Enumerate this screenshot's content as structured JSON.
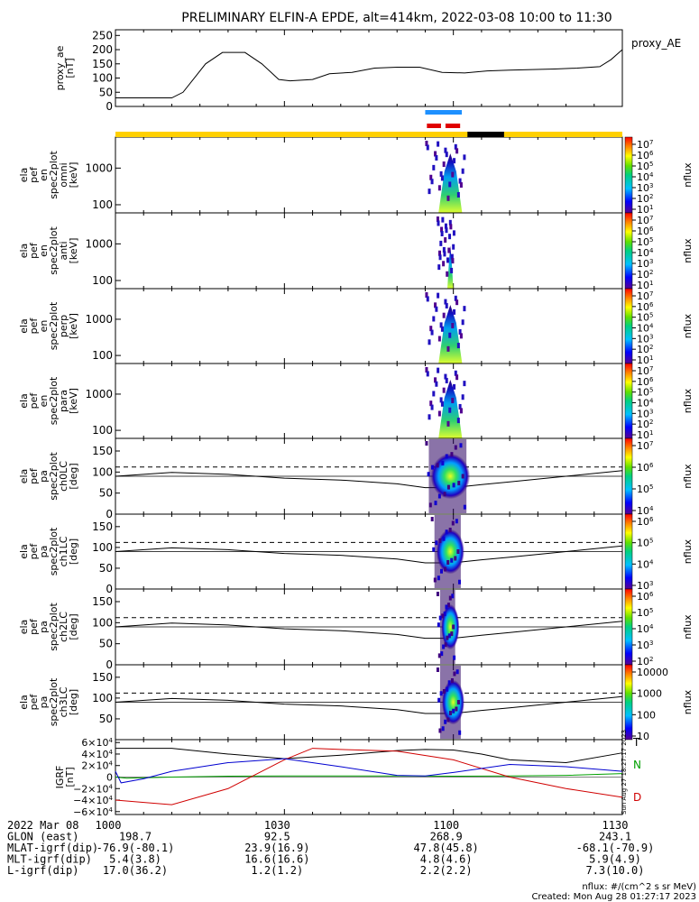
{
  "title": "PRELIMINARY ELFIN-A EPDE, alt=414km, 2022-03-08 10:00 to 11:30",
  "chart_data": [
    {
      "type": "line",
      "id": "proxy_ae",
      "ylabel_lines": [
        "proxy_ae",
        "[nT]"
      ],
      "legend": "proxy_AE",
      "ylim": [
        0,
        270
      ],
      "yticks": [
        "250",
        "200",
        "150",
        "100",
        "50",
        "0"
      ],
      "ytick_values": [
        250,
        200,
        150,
        100,
        50,
        0
      ],
      "x_minutes": [
        0,
        5,
        10,
        12,
        14,
        16,
        19,
        23,
        26,
        29,
        31,
        35,
        38,
        42,
        46,
        50,
        54,
        58,
        62,
        66,
        70,
        74,
        78,
        82,
        86,
        88,
        90
      ],
      "values": [
        30,
        30,
        30,
        50,
        100,
        150,
        190,
        190,
        150,
        95,
        90,
        95,
        115,
        120,
        135,
        138,
        138,
        120,
        118,
        125,
        128,
        130,
        132,
        135,
        140,
        165,
        200
      ]
    },
    {
      "type": "heatmap",
      "id": "omni",
      "ylabel_lines": [
        "ela",
        "pef",
        "en",
        "spec2plot",
        "omni",
        "[keV]"
      ],
      "yscale": "log",
      "yticks": [
        "1000",
        "100"
      ],
      "colorbar_ticks": [
        "10^7",
        "10^6",
        "10^5",
        "10^4",
        "10^3",
        "10^2",
        "10^1"
      ],
      "colorbar_label": "nflux",
      "active_interval_minutes": [
        55,
        62
      ]
    },
    {
      "type": "heatmap",
      "id": "anti",
      "ylabel_lines": [
        "ela",
        "pef",
        "en",
        "spec2plot",
        "anti",
        "[keV]"
      ],
      "yscale": "log",
      "yticks": [
        "1000",
        "100"
      ],
      "colorbar_ticks": [
        "10^7",
        "10^6",
        "10^5",
        "10^4",
        "10^3",
        "10^2",
        "10^1"
      ],
      "colorbar_label": "nflux",
      "active_interval_minutes": [
        57,
        60
      ]
    },
    {
      "type": "heatmap",
      "id": "perp",
      "ylabel_lines": [
        "ela",
        "pef",
        "en",
        "spec2plot",
        "perp",
        "[keV]"
      ],
      "yscale": "log",
      "yticks": [
        "1000",
        "100"
      ],
      "colorbar_ticks": [
        "10^7",
        "10^6",
        "10^5",
        "10^4",
        "10^3",
        "10^2",
        "10^1"
      ],
      "colorbar_label": "nflux",
      "active_interval_minutes": [
        55,
        62
      ]
    },
    {
      "type": "heatmap",
      "id": "para",
      "ylabel_lines": [
        "ela",
        "pef",
        "en",
        "spec2plot",
        "para",
        "[keV]"
      ],
      "yscale": "log",
      "yticks": [
        "1000",
        "100"
      ],
      "colorbar_ticks": [
        "10^7",
        "10^6",
        "10^5",
        "10^4",
        "10^3",
        "10^2",
        "10^1"
      ],
      "colorbar_label": "nflux",
      "active_interval_minutes": [
        55,
        62
      ]
    },
    {
      "type": "heatmap",
      "id": "ch0LC",
      "ylabel_lines": [
        "ela",
        "pef",
        "pa",
        "spec2plot",
        "ch0LC",
        "[deg]"
      ],
      "ylim": [
        0,
        180
      ],
      "yticks": [
        "150",
        "100",
        "50",
        "0"
      ],
      "ytick_values": [
        150,
        100,
        50,
        0
      ],
      "colorbar_ticks": [
        "10^7",
        "10^6",
        "10^5",
        "10^4"
      ],
      "colorbar_label": "nflux",
      "active_interval_minutes": [
        55,
        62
      ],
      "losscone_minutes": [
        0,
        10,
        20,
        30,
        40,
        50,
        55,
        60,
        65,
        70,
        80,
        90
      ],
      "losscone_deg": [
        100,
        110,
        105,
        95,
        90,
        80,
        70,
        70,
        78,
        85,
        100,
        115
      ],
      "antilosscone_deg": [
        80,
        70,
        75,
        85,
        90,
        100,
        110,
        110,
        102,
        95,
        80,
        65
      ]
    },
    {
      "type": "heatmap",
      "id": "ch1LC",
      "ylabel_lines": [
        "ela",
        "pef",
        "pa",
        "spec2plot",
        "ch1LC",
        "[deg]"
      ],
      "ylim": [
        0,
        180
      ],
      "yticks": [
        "150",
        "100",
        "50",
        "0"
      ],
      "ytick_values": [
        150,
        100,
        50,
        0
      ],
      "colorbar_ticks": [
        "10^6",
        "10^5",
        "10^4",
        "10^3"
      ],
      "colorbar_label": "nflux",
      "active_interval_minutes": [
        56,
        61
      ]
    },
    {
      "type": "heatmap",
      "id": "ch2LC",
      "ylabel_lines": [
        "ela",
        "pef",
        "pa",
        "spec2plot",
        "ch2LC",
        "[deg]"
      ],
      "ylim": [
        0,
        180
      ],
      "yticks": [
        "150",
        "100",
        "50",
        "0"
      ],
      "ytick_values": [
        150,
        100,
        50,
        0
      ],
      "colorbar_ticks": [
        "10^6",
        "10^5",
        "10^4",
        "10^3",
        "10^2"
      ],
      "colorbar_label": "nflux",
      "active_interval_minutes": [
        57,
        60
      ]
    },
    {
      "type": "heatmap",
      "id": "ch3LC",
      "ylabel_lines": [
        "ela",
        "pef",
        "pa",
        "spec2plot",
        "ch3LC",
        "[deg]"
      ],
      "ylim": [
        0,
        180
      ],
      "yticks": [
        "150",
        "100",
        "50"
      ],
      "ytick_values": [
        150,
        100,
        50
      ],
      "colorbar_ticks": [
        "10000",
        "1000",
        "100",
        "10"
      ],
      "colorbar_label": "nflux",
      "active_interval_minutes": [
        57,
        61
      ]
    },
    {
      "type": "line",
      "id": "igrf",
      "ylabel_lines": [
        "IGRF",
        "[nT]"
      ],
      "ylim": [
        -65000,
        65000
      ],
      "yticks": [
        "6×10^4",
        "4×10^4",
        "2×10^4",
        "0",
        "−2×10^4",
        "−4×10^4",
        "−6×10^4"
      ],
      "ytick_values": [
        60000,
        40000,
        20000,
        0,
        -20000,
        -40000,
        -60000
      ],
      "series": [
        {
          "name": "T",
          "color": "#000000",
          "x": [
            0,
            10,
            20,
            30,
            40,
            50,
            55,
            60,
            65,
            70,
            80,
            90
          ],
          "values": [
            50000,
            50000,
            40000,
            32000,
            38000,
            46000,
            48000,
            47000,
            40000,
            30000,
            25000,
            42000
          ]
        },
        {
          "name": "N",
          "color": "#00a000",
          "x": [
            0,
            2,
            10,
            20,
            30,
            40,
            50,
            60,
            70,
            80,
            90
          ],
          "values": [
            0,
            -2000,
            0,
            1500,
            2000,
            2000,
            2000,
            1500,
            2000,
            3000,
            6000
          ]
        },
        {
          "name": "D",
          "color": "#d00000",
          "x": [
            0,
            10,
            20,
            30,
            35,
            40,
            50,
            60,
            70,
            80,
            90
          ],
          "values": [
            -40000,
            -48000,
            -20000,
            30000,
            50000,
            48000,
            45000,
            30000,
            0,
            -20000,
            -35000
          ]
        },
        {
          "name": "",
          "color": "#0000d0",
          "x": [
            0,
            1,
            5,
            10,
            20,
            30,
            40,
            50,
            55,
            60,
            70,
            80,
            90
          ],
          "values": [
            10000,
            -10000,
            -3000,
            10000,
            25000,
            32000,
            18000,
            3000,
            2000,
            8000,
            22000,
            18000,
            10000
          ]
        }
      ]
    }
  ],
  "side_stamp": "Sun Aug 27 18:27:17 2023",
  "footer": {
    "rows": [
      [
        "2022 Mar 08",
        "1000",
        "1030",
        "1100",
        "1130"
      ],
      [
        "GLON (east)",
        "198.7",
        "92.5",
        "268.9",
        "243.1"
      ],
      [
        "MLAT-igrf(dip)",
        "-76.9(-80.1)",
        "23.9(16.9)",
        "47.8(45.8)",
        "-68.1(-70.9)"
      ],
      [
        "MLT-igrf(dip)",
        "5.4(3.8)",
        "16.6(16.6)",
        "4.8(4.6)",
        "5.9(4.9)"
      ],
      [
        "L-igrf(dip)",
        "17.0(36.2)",
        "1.2(1.2)",
        "2.2(2.2)",
        "7.3(10.0)"
      ]
    ],
    "units": "nflux: #/(cm^2 s sr MeV)",
    "created": "Created: Mon Aug 28 01:27:17 2023"
  },
  "colors": {
    "sunlit_bar": "#ffd000",
    "shadow_bar": "#000000",
    "blue_marker": "#1e90ff",
    "red_marker": "#e00000"
  }
}
